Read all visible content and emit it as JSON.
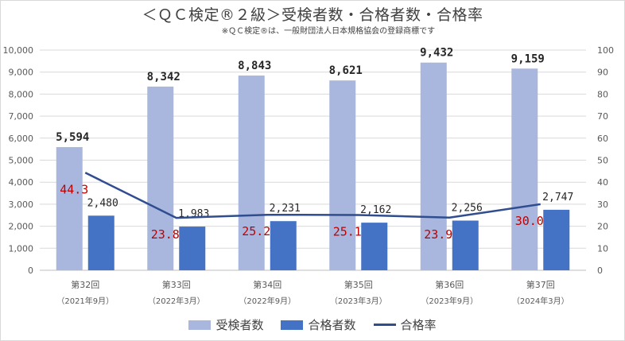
{
  "title": "＜ＱＣ検定®２級＞受検者数・合格者数・合格率",
  "subtitle": "※ＱＣ検定®は、一般財団法人日本規格協会の登録商標です",
  "colors": {
    "applicants": "#a9b7de",
    "passers": "#4472c4",
    "rate": "#2f4d8f",
    "rate_label": "#c00000",
    "grid": "#d9d9d9",
    "axis_text": "#595959"
  },
  "chart_data": {
    "type": "bar",
    "title": "＜ＱＣ検定®２級＞受検者数・合格者数・合格率",
    "categories": [
      "第32回",
      "第33回",
      "第34回",
      "第35回",
      "第36回",
      "第37回"
    ],
    "category_sublabels": [
      "（2021年9月）",
      "（2022年3月）",
      "（2022年9月）",
      "（2023年3月）",
      "（2023年9月）",
      "（2024年3月）"
    ],
    "series": [
      {
        "name": "受検者数",
        "axis": "left",
        "values": [
          5594,
          8342,
          8843,
          8621,
          9432,
          9159
        ],
        "labels": [
          "5,594",
          "8,342",
          "8,843",
          "8,621",
          "9,432",
          "9,159"
        ]
      },
      {
        "name": "合格者数",
        "axis": "left",
        "values": [
          2480,
          1983,
          2231,
          2162,
          2256,
          2747
        ],
        "labels": [
          "2,480",
          "1,983",
          "2,231",
          "2,162",
          "2,256",
          "2,747"
        ]
      },
      {
        "name": "合格率",
        "type": "line",
        "axis": "right",
        "values": [
          44.3,
          23.8,
          25.2,
          25.1,
          23.9,
          30.0
        ],
        "labels": [
          "44.3",
          "23.8",
          "25.2",
          "25.1",
          "23.9",
          "30.0"
        ]
      }
    ],
    "ylim": [
      0,
      10000
    ],
    "y2lim": [
      0,
      100
    ],
    "y_ticks": [
      "0",
      "1,000",
      "2,000",
      "3,000",
      "4,000",
      "5,000",
      "6,000",
      "7,000",
      "8,000",
      "9,000",
      "10,000"
    ],
    "y2_ticks": [
      "0",
      "10",
      "20",
      "30",
      "40",
      "50",
      "60",
      "70",
      "80",
      "90",
      "100"
    ],
    "grid": true,
    "legend": "bottom"
  }
}
